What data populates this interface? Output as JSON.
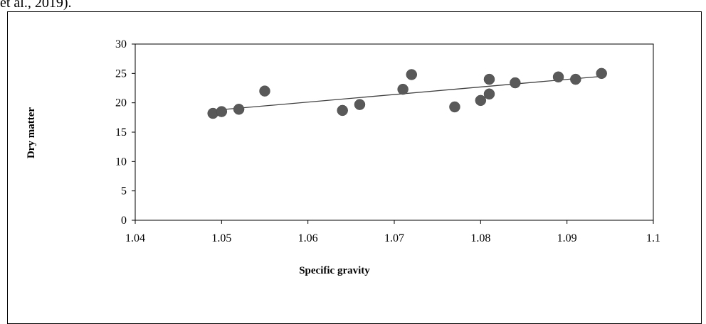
{
  "header_caption": "et al., 2019).",
  "chart_data": {
    "type": "scatter",
    "xlabel": "Specific gravity",
    "ylabel": "Dry matter",
    "xlim": [
      1.04,
      1.1
    ],
    "ylim": [
      0,
      30
    ],
    "x_ticks": [
      "1.04",
      "1.05",
      "1.06",
      "1.07",
      "1.08",
      "1.09",
      "1.1"
    ],
    "y_ticks": [
      "0",
      "5",
      "10",
      "15",
      "20",
      "25",
      "30"
    ],
    "grid": false,
    "legend": "none",
    "marker_color": "#595959",
    "trendline": {
      "type": "linear",
      "x": [
        1.049,
        1.094
      ],
      "y": [
        18.7,
        24.5
      ],
      "color": "#404040"
    },
    "series": [
      {
        "x": [
          1.049,
          1.05,
          1.052,
          1.055,
          1.064,
          1.066,
          1.071,
          1.072,
          1.077,
          1.08,
          1.081,
          1.081,
          1.084,
          1.089,
          1.091,
          1.094
        ],
        "y": [
          18.2,
          18.5,
          18.9,
          22.0,
          18.7,
          19.7,
          22.3,
          24.8,
          19.3,
          20.4,
          21.5,
          24.0,
          23.4,
          24.4,
          24.0,
          25.0
        ]
      }
    ]
  }
}
